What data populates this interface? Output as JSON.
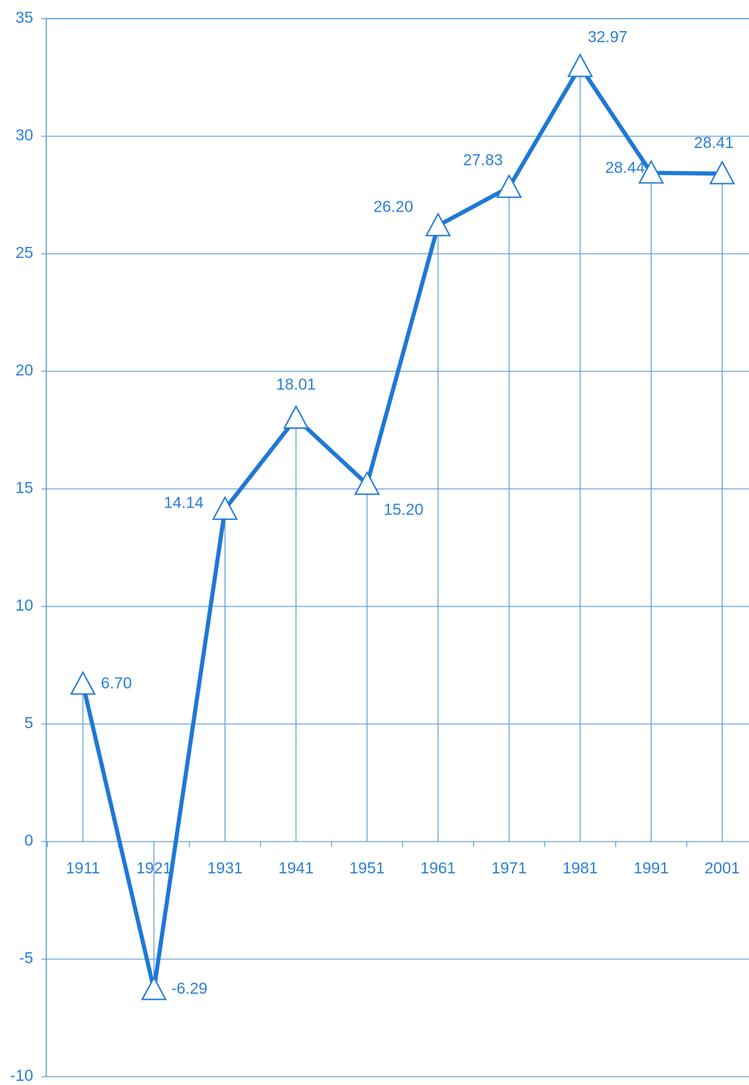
{
  "chart_data": {
    "type": "line",
    "categories": [
      "1911",
      "1921",
      "1931",
      "1941",
      "1951",
      "1961",
      "1971",
      "1981",
      "1991",
      "2001"
    ],
    "values": [
      6.7,
      -6.29,
      14.14,
      18.01,
      15.2,
      26.2,
      27.83,
      32.97,
      28.44,
      28.41
    ],
    "value_labels": [
      "6.70",
      "-6.29",
      "14.14",
      "18.01",
      "15.20",
      "26.20",
      "27.83",
      "32.97",
      "28.44",
      "28.41"
    ],
    "color": "#1f78d6",
    "marker": "triangle",
    "ylim": [
      -10,
      35
    ],
    "yticks": [
      -10,
      -5,
      0,
      5,
      10,
      15,
      20,
      25,
      30,
      35
    ],
    "grid": true
  }
}
